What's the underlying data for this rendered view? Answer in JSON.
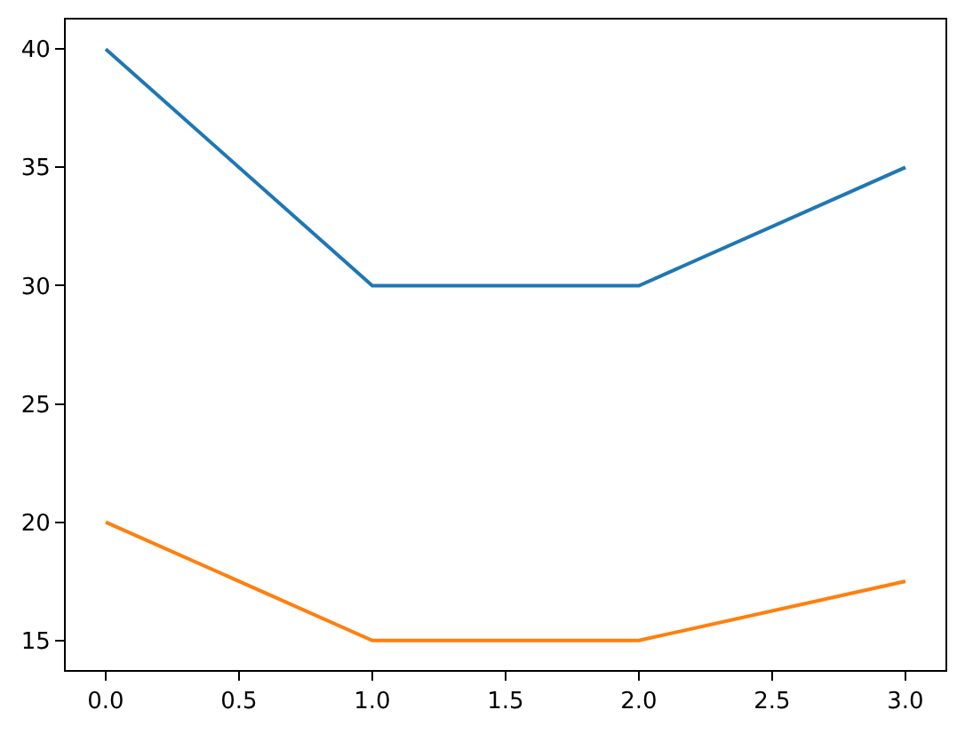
{
  "chart_data": {
    "type": "line",
    "x": [
      0,
      1,
      2,
      3
    ],
    "series": [
      {
        "color": "#1f77b4",
        "values": [
          40,
          30,
          30,
          35
        ]
      },
      {
        "color": "#ff7f0e",
        "values": [
          20,
          15,
          15,
          17.5
        ]
      }
    ],
    "xlim": [
      -0.15,
      3.15
    ],
    "xticks": [
      {
        "value": 0,
        "label": "0.0"
      },
      {
        "value": 0.5,
        "label": "0.5"
      },
      {
        "value": 1,
        "label": "1.0"
      },
      {
        "value": 1.5,
        "label": "1.5"
      },
      {
        "value": 2,
        "label": "2.0"
      },
      {
        "value": 2.5,
        "label": "2.5"
      },
      {
        "value": 3,
        "label": "3.0"
      }
    ],
    "ylim": [
      13.75,
      41.25
    ],
    "yticks": [
      15,
      20,
      25,
      30,
      35,
      40
    ],
    "grid": false,
    "line_style": "solid"
  }
}
